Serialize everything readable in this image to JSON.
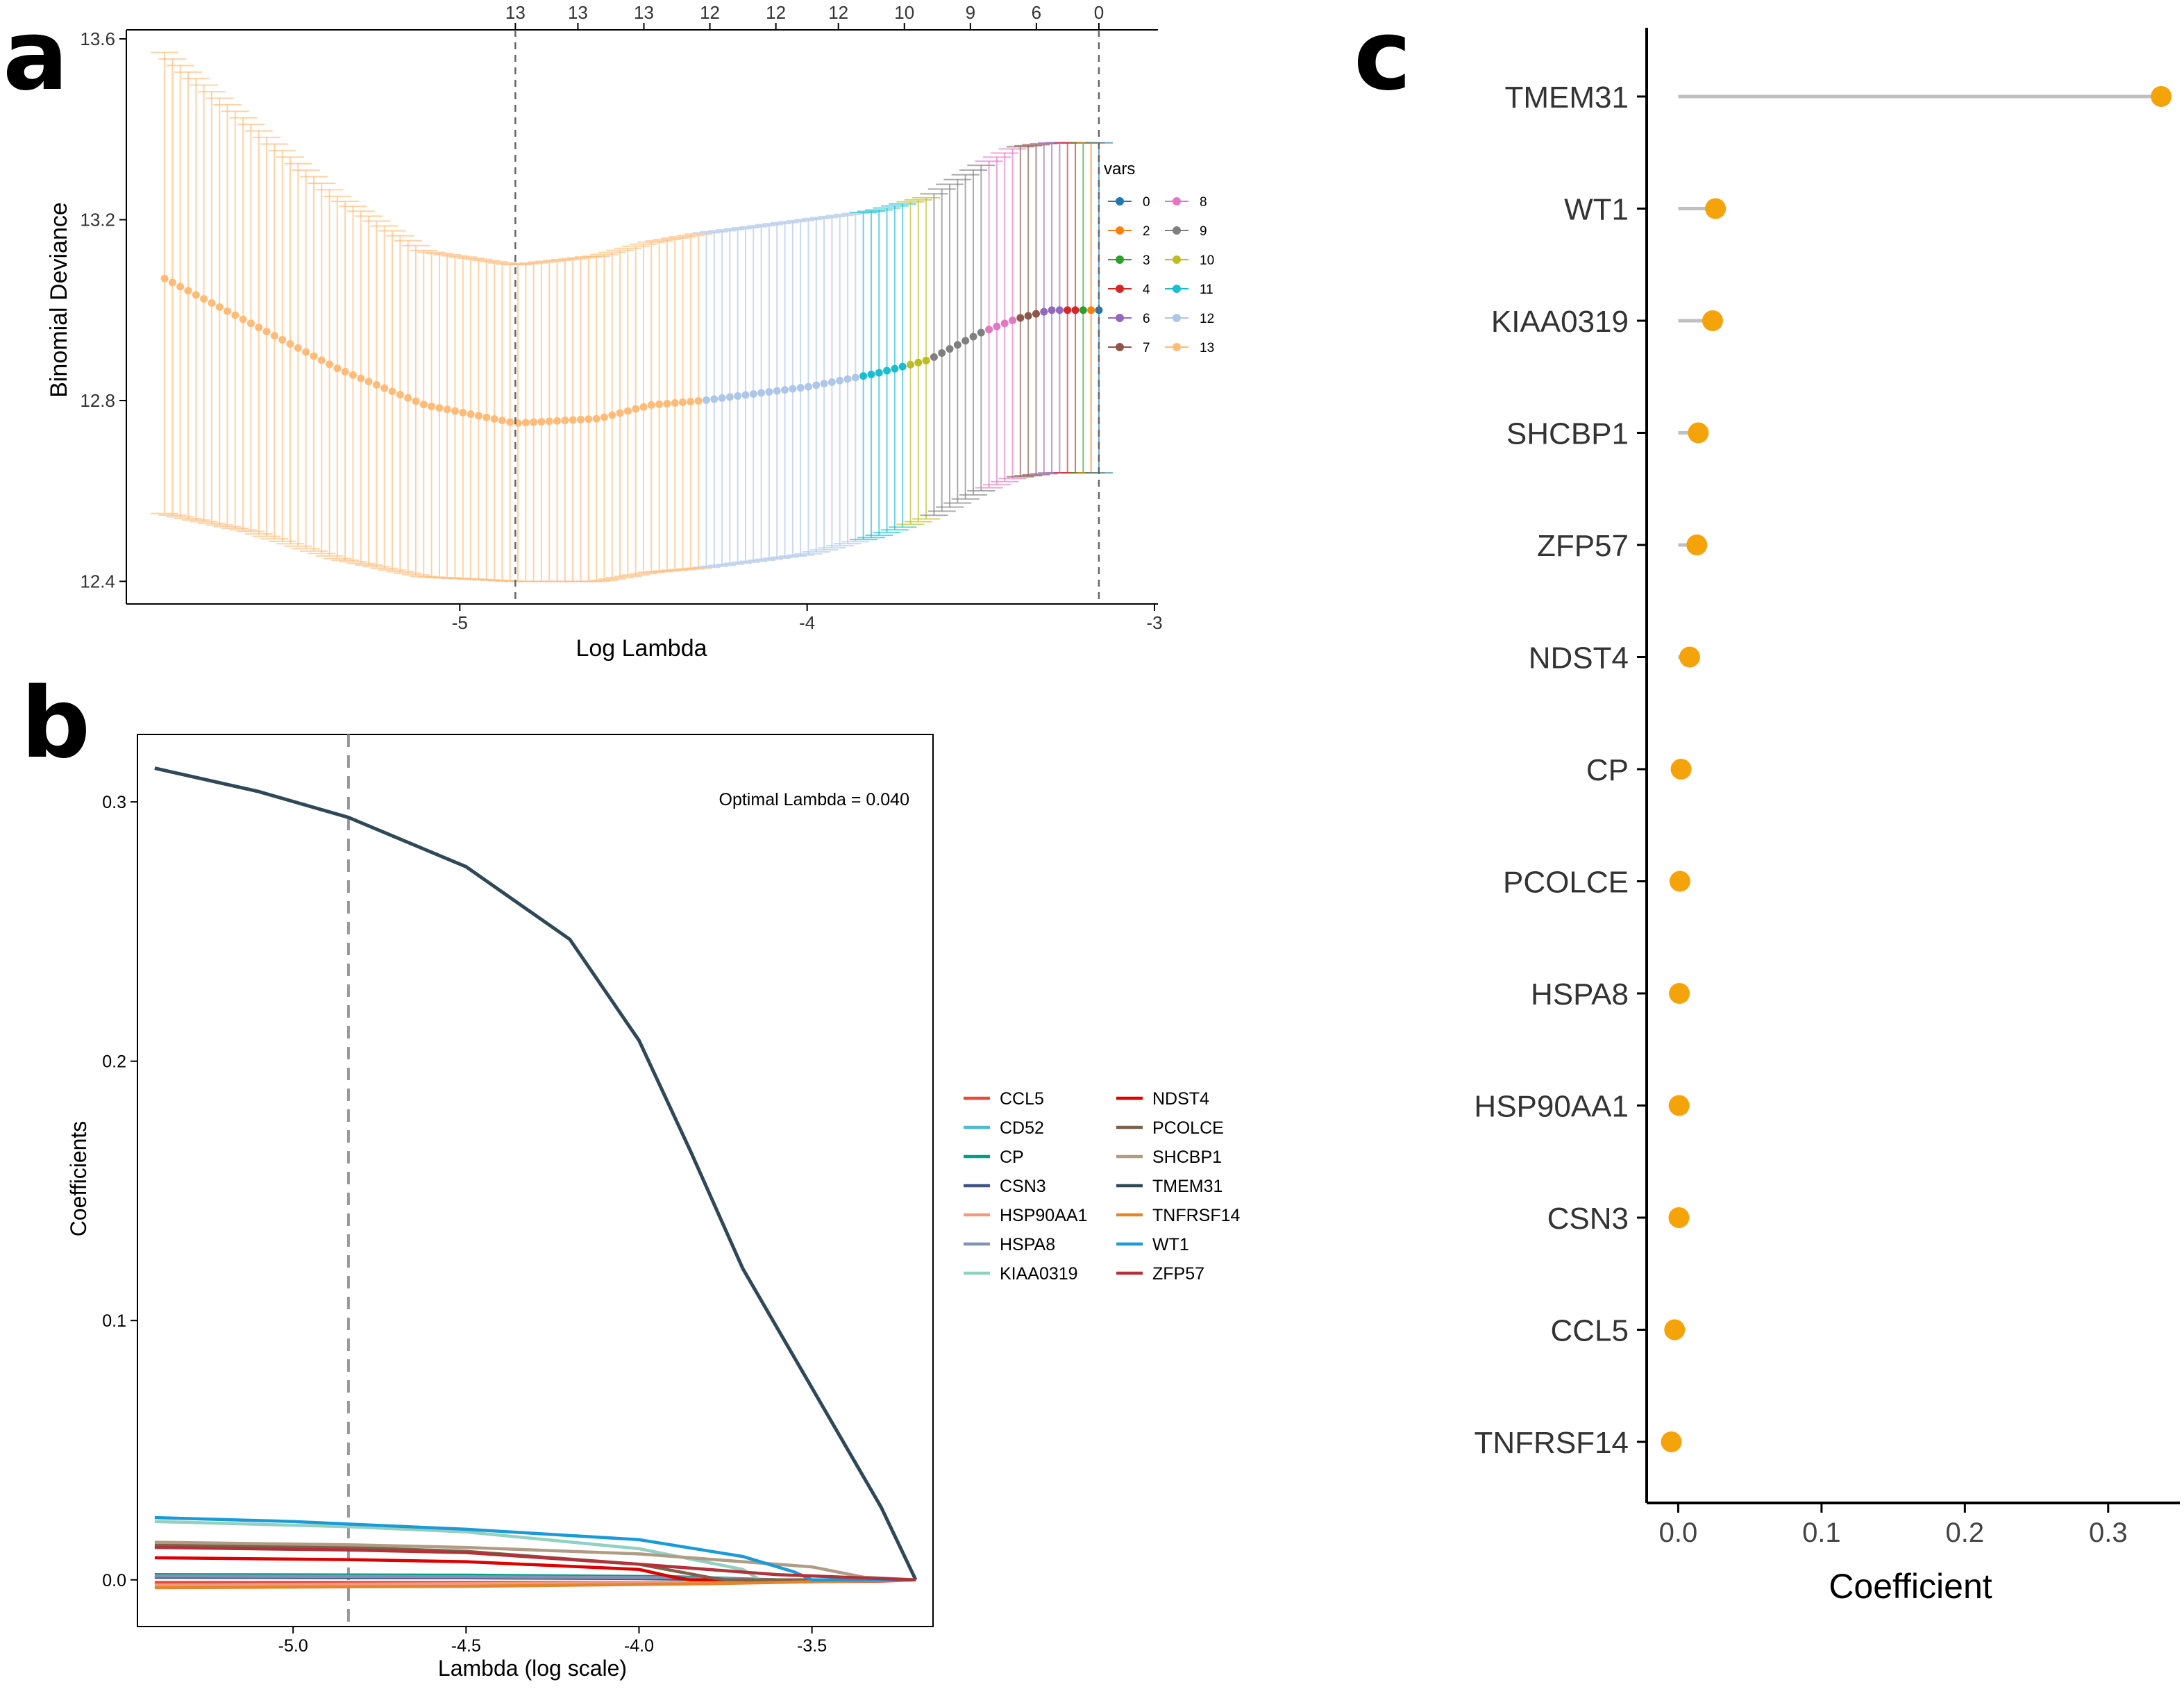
{
  "panel_labels": {
    "a": "a",
    "b": "b",
    "c": "c"
  },
  "chart_data": [
    {
      "id": "a",
      "type": "line",
      "xlabel": "Log Lambda",
      "ylabel": "Binomial Deviance",
      "xlim": [
        -5.96,
        -2.99
      ],
      "ylim": [
        12.35,
        13.62
      ],
      "xticks": [
        -5,
        -4,
        -3
      ],
      "xtick_labels": [
        "-5",
        "-4",
        "-3"
      ],
      "yticks": [
        12.4,
        12.8,
        13.2,
        13.6
      ],
      "ytick_labels": [
        "12.4",
        "12.8",
        "13.2",
        "13.6"
      ],
      "top_axis_labels": [
        "13",
        "13",
        "13",
        "12",
        "12",
        "12",
        "10",
        "9",
        "6",
        "0"
      ],
      "top_axis_positions": [
        -4.84,
        -4.66,
        -4.47,
        -4.28,
        -4.09,
        -3.91,
        -3.72,
        -3.53,
        -3.34,
        -3.16
      ],
      "vlines": [
        -4.84,
        -3.16
      ],
      "legend_title": "vars",
      "legend": [
        {
          "label": "0",
          "color": "#1f77b4"
        },
        {
          "label": "2",
          "color": "#ff7f0e"
        },
        {
          "label": "3",
          "color": "#2ca02c"
        },
        {
          "label": "4",
          "color": "#d62728"
        },
        {
          "label": "6",
          "color": "#9467bd"
        },
        {
          "label": "7",
          "color": "#8c564b"
        },
        {
          "label": "8",
          "color": "#e377c2"
        },
        {
          "label": "9",
          "color": "#7f7f7f"
        },
        {
          "label": "10",
          "color": "#bcbd22"
        },
        {
          "label": "11",
          "color": "#17becf"
        },
        {
          "label": "12",
          "color": "#aec7e8"
        },
        {
          "label": "13",
          "color": "#ffbb78"
        }
      ],
      "curve": {
        "x": [
          -5.85,
          -5.6,
          -5.35,
          -5.1,
          -4.84,
          -4.6,
          -4.45,
          -4.3,
          -4.0,
          -3.8,
          -3.65,
          -3.5,
          -3.4,
          -3.3,
          -3.16
        ],
        "y": [
          13.07,
          12.97,
          12.87,
          12.79,
          12.75,
          12.76,
          12.79,
          12.8,
          12.83,
          12.86,
          12.89,
          12.95,
          12.98,
          13.0,
          13.0
        ],
        "lower": [
          12.55,
          12.51,
          12.45,
          12.41,
          12.4,
          12.4,
          12.42,
          12.43,
          12.46,
          12.5,
          12.54,
          12.6,
          12.63,
          12.64,
          12.64
        ],
        "upper": [
          13.57,
          13.41,
          13.25,
          13.13,
          13.1,
          13.12,
          13.15,
          13.17,
          13.2,
          13.22,
          13.25,
          13.32,
          13.36,
          13.37,
          13.37
        ],
        "color_breaks": [
          {
            "until": -4.3,
            "color": "#ffbb78"
          },
          {
            "until": -3.86,
            "color": "#aec7e8"
          },
          {
            "until": -3.72,
            "color": "#17becf"
          },
          {
            "until": -3.65,
            "color": "#bcbd22"
          },
          {
            "until": -3.48,
            "color": "#7f7f7f"
          },
          {
            "until": -3.4,
            "color": "#e377c2"
          },
          {
            "until": -3.32,
            "color": "#8c564b"
          },
          {
            "until": -3.27,
            "color": "#9467bd"
          },
          {
            "until": -3.22,
            "color": "#d62728"
          },
          {
            "until": -3.19,
            "color": "#2ca02c"
          },
          {
            "until": -3.17,
            "color": "#ff7f0e"
          },
          {
            "until": -3.15,
            "color": "#1f77b4"
          }
        ]
      }
    },
    {
      "id": "b",
      "type": "line",
      "xlabel": "Lambda (log scale)",
      "ylabel": "Coefficients",
      "xlim": [
        -5.45,
        -3.15
      ],
      "ylim": [
        -0.018,
        0.326
      ],
      "xticks": [
        -5.0,
        -4.5,
        -4.0,
        -3.5
      ],
      "xtick_labels": [
        "-5.0",
        "-4.5",
        "-4.0",
        "-3.5"
      ],
      "yticks": [
        0.0,
        0.1,
        0.2,
        0.3
      ],
      "ytick_labels": [
        "0.0",
        "0.1",
        "0.2",
        "0.3"
      ],
      "vline": -4.84,
      "annotation": "Optimal Lambda = 0.040",
      "series": [
        {
          "name": "CCL5",
          "color": "#e64b35",
          "x": [
            -5.4,
            -4.5,
            -3.8,
            -3.3,
            -3.2
          ],
          "values": [
            -0.001,
            -0.001,
            -0.001,
            -0.0005,
            0
          ]
        },
        {
          "name": "CD52",
          "color": "#4dbbd5",
          "x": [
            -5.4,
            -4.5,
            -3.9,
            -3.6,
            -3.2
          ],
          "values": [
            0.001,
            0.0008,
            0.0005,
            0,
            0
          ]
        },
        {
          "name": "CP",
          "color": "#00a087",
          "x": [
            -5.4,
            -4.5,
            -3.9,
            -3.6,
            -3.2
          ],
          "values": [
            0.002,
            0.0018,
            0.0012,
            0,
            0
          ]
        },
        {
          "name": "CSN3",
          "color": "#3c5488",
          "x": [
            -5.4,
            -4.5,
            -4.0,
            -3.7,
            -3.2
          ],
          "values": [
            0.001,
            0.0008,
            0.0005,
            0,
            0
          ]
        },
        {
          "name": "HSP90AA1",
          "color": "#f39b7f",
          "x": [
            -5.4,
            -4.5,
            -3.9,
            -3.5,
            -3.2
          ],
          "values": [
            -0.002,
            -0.0015,
            -0.001,
            0,
            0
          ]
        },
        {
          "name": "HSPA8",
          "color": "#8491b4",
          "x": [
            -5.4,
            -4.5,
            -3.9,
            -3.6,
            -3.2
          ],
          "values": [
            0.0015,
            0.0012,
            0.0008,
            0,
            0
          ]
        },
        {
          "name": "KIAA0319",
          "color": "#91d1c2",
          "x": [
            -5.4,
            -4.84,
            -4.5,
            -4.0,
            -3.7,
            -3.65,
            -3.2
          ],
          "values": [
            0.0225,
            0.0205,
            0.0185,
            0.012,
            0.004,
            0,
            0
          ]
        },
        {
          "name": "NDST4",
          "color": "#dc0000",
          "x": [
            -5.4,
            -4.84,
            -4.5,
            -4.0,
            -3.9,
            -3.85,
            -3.2
          ],
          "values": [
            0.0085,
            0.0078,
            0.007,
            0.004,
            0.001,
            0,
            0
          ]
        },
        {
          "name": "PCOLCE",
          "color": "#7e6148",
          "x": [
            -5.4,
            -4.84,
            -4.5,
            -4.0,
            -3.8,
            -3.75,
            -3.2
          ],
          "values": [
            0.0135,
            0.0125,
            0.011,
            0.006,
            0.001,
            0,
            0
          ]
        },
        {
          "name": "SHCBP1",
          "color": "#b09c85",
          "x": [
            -5.4,
            -4.84,
            -4.5,
            -4.0,
            -3.5,
            -3.35,
            -3.2
          ],
          "values": [
            0.0145,
            0.0135,
            0.0125,
            0.01,
            0.005,
            0.001,
            0
          ]
        },
        {
          "name": "TMEM31",
          "color": "#2f4858",
          "x": [
            -5.4,
            -5.1,
            -4.84,
            -4.5,
            -4.2,
            -4.0,
            -3.85,
            -3.7,
            -3.5,
            -3.3,
            -3.2
          ],
          "values": [
            0.313,
            0.304,
            0.294,
            0.275,
            0.247,
            0.208,
            0.165,
            0.12,
            0.074,
            0.028,
            0
          ]
        },
        {
          "name": "TNFRSF14",
          "color": "#e4852c",
          "x": [
            -5.4,
            -4.5,
            -3.8,
            -3.4,
            -3.2
          ],
          "values": [
            -0.003,
            -0.0025,
            -0.0015,
            -0.0005,
            0
          ]
        },
        {
          "name": "WT1",
          "color": "#1b9ad7",
          "x": [
            -5.4,
            -5.0,
            -4.84,
            -4.5,
            -4.0,
            -3.7,
            -3.55,
            -3.5,
            -3.2
          ],
          "values": [
            0.024,
            0.0225,
            0.0215,
            0.0195,
            0.0155,
            0.009,
            0.003,
            0,
            0
          ]
        },
        {
          "name": "ZFP57",
          "color": "#b2323a",
          "x": [
            -5.4,
            -4.84,
            -4.5,
            -4.0,
            -3.6,
            -3.2
          ],
          "values": [
            0.0125,
            0.0115,
            0.0105,
            0.006,
            0.002,
            0
          ]
        }
      ]
    },
    {
      "id": "c",
      "type": "scatter",
      "subtype": "lollipop",
      "xlabel": "Coefficient",
      "xlim": [
        -0.022,
        0.35
      ],
      "xticks": [
        0.0,
        0.1,
        0.2,
        0.3
      ],
      "xtick_labels": [
        "0.0",
        "0.1",
        "0.2",
        "0.3"
      ],
      "point_color": "#f5a30a",
      "stem_color": "#c0c0c0",
      "categories": [
        "TMEM31",
        "WT1",
        "KIAA0319",
        "SHCBP1",
        "ZFP57",
        "NDST4",
        "CP",
        "PCOLCE",
        "HSPA8",
        "HSP90AA1",
        "CSN3",
        "CCL5",
        "TNFRSF14"
      ],
      "values": [
        0.337,
        0.026,
        0.024,
        0.014,
        0.013,
        0.008,
        0.002,
        0.0012,
        0.0008,
        0.0006,
        0.0005,
        -0.0025,
        -0.0048
      ]
    }
  ]
}
